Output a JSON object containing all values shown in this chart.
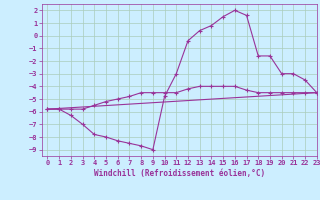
{
  "background_color": "#cceeff",
  "grid_color": "#aaccbb",
  "line_color": "#993399",
  "xlim": [
    -0.5,
    23
  ],
  "ylim": [
    -9.5,
    2.5
  ],
  "xlabel": "Windchill (Refroidissement éolien,°C)",
  "xticks": [
    0,
    1,
    2,
    3,
    4,
    5,
    6,
    7,
    8,
    9,
    10,
    11,
    12,
    13,
    14,
    15,
    16,
    17,
    18,
    19,
    20,
    21,
    22,
    23
  ],
  "yticks": [
    2,
    1,
    0,
    -1,
    -2,
    -3,
    -4,
    -5,
    -6,
    -7,
    -8,
    -9
  ],
  "curve1_x": [
    0,
    1,
    2,
    3,
    4,
    5,
    6,
    7,
    8,
    9,
    10,
    11,
    12,
    13,
    14,
    15,
    16,
    17,
    18,
    19,
    20,
    21,
    22,
    23
  ],
  "curve1_y": [
    -5.8,
    -5.8,
    -6.3,
    -7.0,
    -7.8,
    -8.0,
    -8.3,
    -8.5,
    -8.7,
    -9.0,
    -4.8,
    -3.0,
    -0.4,
    0.4,
    0.8,
    1.5,
    2.0,
    1.6,
    -1.6,
    -1.6,
    -3.0,
    -3.0,
    -3.5,
    -4.5
  ],
  "curve2_x": [
    0,
    1,
    2,
    3,
    4,
    5,
    6,
    7,
    8,
    9,
    10,
    11,
    12,
    13,
    14,
    15,
    16,
    17,
    18,
    19,
    20,
    21,
    22,
    23
  ],
  "curve2_y": [
    -5.8,
    -5.8,
    -5.8,
    -5.8,
    -5.5,
    -5.2,
    -5.0,
    -4.8,
    -4.5,
    -4.5,
    -4.5,
    -4.5,
    -4.2,
    -4.0,
    -4.0,
    -4.0,
    -4.0,
    -4.3,
    -4.5,
    -4.5,
    -4.5,
    -4.5,
    -4.5,
    -4.5
  ],
  "curve3_x": [
    0,
    23
  ],
  "curve3_y": [
    -5.8,
    -4.5
  ],
  "tick_fontsize": 5,
  "xlabel_fontsize": 5.5
}
